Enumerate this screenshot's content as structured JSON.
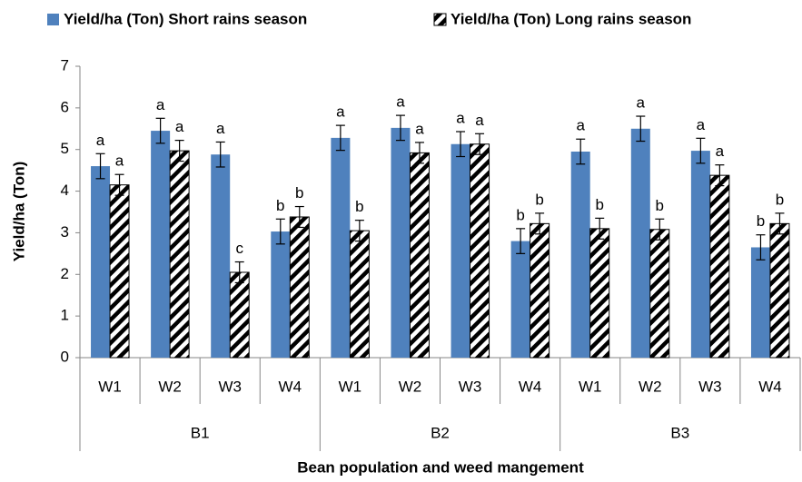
{
  "chart_data": {
    "type": "bar",
    "y_label": "Yield/ha (Ton)",
    "x_label": "Bean population and weed mangement",
    "groups": [
      {
        "name": "B1",
        "categories": [
          "W1",
          "W2",
          "W3",
          "W4"
        ]
      },
      {
        "name": "B2",
        "categories": [
          "W1",
          "W2",
          "W3",
          "W4"
        ]
      },
      {
        "name": "B3",
        "categories": [
          "W1",
          "W2",
          "W3",
          "W4"
        ]
      }
    ],
    "series": [
      {
        "name": "Yield/ha (Ton)  Short rains season",
        "color": "#4f81bd",
        "values": [
          4.6,
          5.45,
          4.88,
          3.03,
          5.28,
          5.52,
          5.13,
          2.8,
          4.95,
          5.5,
          4.97,
          2.65
        ],
        "errors": [
          0.3,
          0.3,
          0.3,
          0.3,
          0.3,
          0.3,
          0.3,
          0.3,
          0.3,
          0.3,
          0.3,
          0.3
        ],
        "letters": [
          "a",
          "a",
          "a",
          "b",
          "a",
          "a",
          "a",
          "b",
          "a",
          "a",
          "a",
          "b"
        ]
      },
      {
        "name": "Yield/ha (Ton) Long rains season",
        "color": "#000000",
        "pattern": "hatch",
        "values": [
          4.15,
          4.97,
          2.05,
          3.38,
          3.05,
          4.92,
          5.13,
          3.22,
          3.1,
          3.08,
          4.38,
          3.22
        ],
        "errors": [
          0.25,
          0.25,
          0.25,
          0.25,
          0.25,
          0.25,
          0.25,
          0.25,
          0.25,
          0.25,
          0.25,
          0.25
        ],
        "letters": [
          "a",
          "a",
          "c",
          "b",
          "b",
          "a",
          "a",
          "b",
          "b",
          "b",
          "a",
          "b"
        ]
      }
    ],
    "ylim": [
      0,
      7
    ],
    "yticks": [
      0,
      1,
      2,
      3,
      4,
      5,
      6,
      7
    ]
  }
}
